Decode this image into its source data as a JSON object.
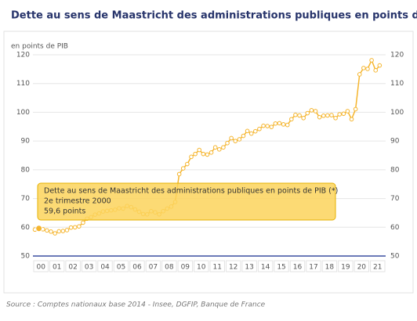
{
  "chart_data": {
    "type": "line",
    "title": "Dette au sens de Maastricht des administrations publiques en points de PIB (*)",
    "y_label": "en points de PIB",
    "source": "Source : Comptes nationaux base 2014 - Insee, DGFIP, Banque de France",
    "ylim": [
      50,
      120
    ],
    "yticks": [
      50,
      60,
      70,
      80,
      90,
      100,
      110,
      120
    ],
    "grid": true,
    "xlim": [
      2000,
      2022
    ],
    "xticks": [
      {
        "value": 2000.5,
        "label": "00"
      },
      {
        "value": 2001.5,
        "label": "01"
      },
      {
        "value": 2002.5,
        "label": "02"
      },
      {
        "value": 2003.5,
        "label": "03"
      },
      {
        "value": 2004.5,
        "label": "04"
      },
      {
        "value": 2005.5,
        "label": "05"
      },
      {
        "value": 2006.5,
        "label": "06"
      },
      {
        "value": 2007.5,
        "label": "07"
      },
      {
        "value": 2008.5,
        "label": "08"
      },
      {
        "value": 2009.5,
        "label": "09"
      },
      {
        "value": 2010.5,
        "label": "10"
      },
      {
        "value": 2011.5,
        "label": "11"
      },
      {
        "value": 2012.5,
        "label": "12"
      },
      {
        "value": 2013.5,
        "label": "13"
      },
      {
        "value": 2014.5,
        "label": "14"
      },
      {
        "value": 2015.5,
        "label": "15"
      },
      {
        "value": 2016.5,
        "label": "16"
      },
      {
        "value": 2017.5,
        "label": "17"
      },
      {
        "value": 2018.5,
        "label": "18"
      },
      {
        "value": 2019.5,
        "label": "19"
      },
      {
        "value": 2020.5,
        "label": "20"
      },
      {
        "value": 2021.5,
        "label": "21"
      }
    ],
    "x": [
      2000.125,
      2000.375,
      2000.625,
      2000.875,
      2001.125,
      2001.375,
      2001.625,
      2001.875,
      2002.125,
      2002.375,
      2002.625,
      2002.875,
      2003.125,
      2003.375,
      2003.625,
      2003.875,
      2004.125,
      2004.375,
      2004.625,
      2004.875,
      2005.125,
      2005.375,
      2005.625,
      2005.875,
      2006.125,
      2006.375,
      2006.625,
      2006.875,
      2007.125,
      2007.375,
      2007.625,
      2007.875,
      2008.125,
      2008.375,
      2008.625,
      2008.875,
      2009.125,
      2009.375,
      2009.625,
      2009.875,
      2010.125,
      2010.375,
      2010.625,
      2010.875,
      2011.125,
      2011.375,
      2011.625,
      2011.875,
      2012.125,
      2012.375,
      2012.625,
      2012.875,
      2013.125,
      2013.375,
      2013.625,
      2013.875,
      2014.125,
      2014.375,
      2014.625,
      2014.875,
      2015.125,
      2015.375,
      2015.625,
      2015.875,
      2016.125,
      2016.375,
      2016.625,
      2016.875,
      2017.125,
      2017.375,
      2017.625,
      2017.875,
      2018.125,
      2018.375,
      2018.625,
      2018.875,
      2019.125,
      2019.375,
      2019.625,
      2019.875,
      2020.125,
      2020.375,
      2020.625,
      2020.875,
      2021.125,
      2021.375,
      2021.625
    ],
    "series": [
      {
        "name": "Dette au sens de Maastricht des administrations publiques en points de PIB (*)",
        "color": "#f5b52e",
        "values": [
          59.2,
          59.6,
          59.3,
          58.9,
          58.5,
          57.9,
          58.6,
          58.7,
          59.0,
          59.9,
          60.0,
          60.3,
          61.6,
          63.0,
          63.5,
          64.4,
          64.8,
          65.5,
          65.7,
          65.9,
          66.1,
          66.6,
          66.5,
          67.4,
          67.0,
          66.2,
          65.4,
          64.6,
          64.5,
          65.6,
          65.2,
          64.5,
          65.6,
          66.5,
          67.2,
          68.8,
          78.5,
          80.5,
          82.0,
          84.5,
          85.5,
          86.9,
          85.5,
          85.3,
          86.0,
          87.8,
          87.1,
          87.8,
          89.3,
          91.0,
          90.0,
          90.6,
          91.8,
          93.5,
          92.6,
          93.4,
          94.2,
          95.3,
          95.2,
          94.9,
          96.1,
          96.2,
          95.8,
          95.6,
          97.6,
          99.1,
          98.9,
          98.0,
          99.7,
          100.7,
          100.4,
          98.3,
          98.8,
          98.9,
          99.0,
          98.0,
          99.3,
          99.5,
          100.4,
          97.6,
          101.1,
          113.2,
          115.4,
          115.1,
          118.1,
          114.6,
          116.3
        ]
      }
    ],
    "tooltip": {
      "index": 1,
      "series": "Dette au sens de Maastricht des administrations publiques en points de PIB (*)",
      "period": "2e trimestre 2000",
      "value": "59,6 points"
    }
  }
}
